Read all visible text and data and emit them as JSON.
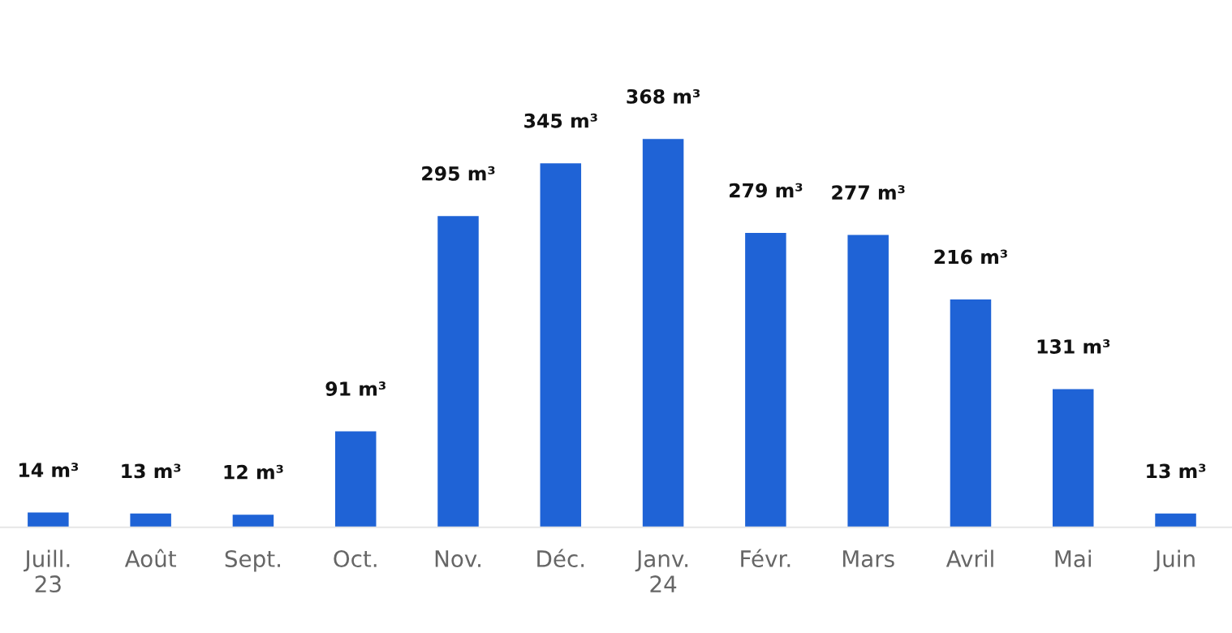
{
  "chart_data": {
    "type": "bar",
    "categories": [
      "Juill.\n23",
      "Août",
      "Sept.",
      "Oct.",
      "Nov.",
      "Déc.",
      "Janv.\n24",
      "Févr.",
      "Mars",
      "Avril",
      "Mai",
      "Juin"
    ],
    "values": [
      14,
      13,
      12,
      91,
      295,
      345,
      368,
      279,
      277,
      216,
      131,
      13
    ],
    "value_labels": [
      "14 m³",
      "13 m³",
      "12 m³",
      "91 m³",
      "295 m³",
      "345 m³",
      "368 m³",
      "279 m³",
      "277 m³",
      "216 m³",
      "131 m³",
      "13 m³"
    ],
    "color": "#1f63d6",
    "grid": false,
    "legend": false
  }
}
